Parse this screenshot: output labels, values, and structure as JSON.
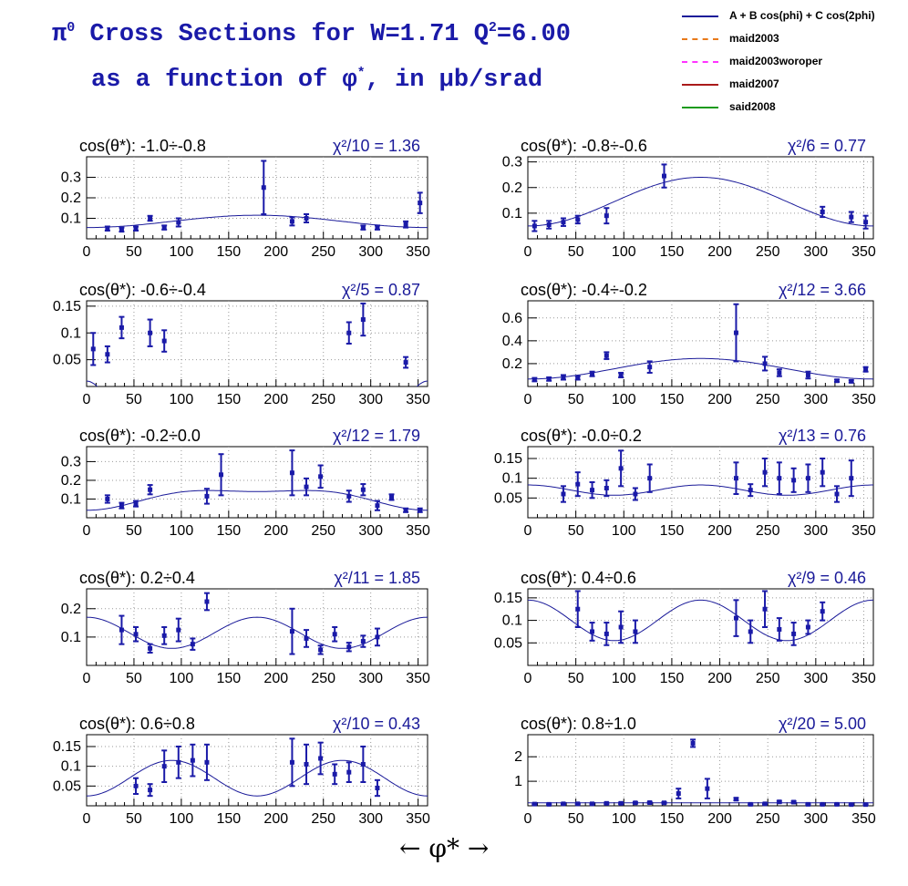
{
  "title": {
    "line1_prefix": "π",
    "line1_sup": "0",
    "line1_text": " Cross Sections for W=1.71  Q",
    "line1_sup2": "2",
    "line1_tail": "=6.00",
    "line2_prefix": "as a function of φ",
    "line2_sup": "*",
    "line2_tail": ", in μb/srad"
  },
  "legend": [
    {
      "label": "A + B cos(phi) + C cos(2phi)",
      "color": "#1a1a99",
      "style": "solid"
    },
    {
      "label": "maid2003",
      "color": "#e87a1a",
      "style": "dashdot"
    },
    {
      "label": "maid2003woroper",
      "color": "#ff33ff",
      "style": "dashed"
    },
    {
      "label": "maid2007",
      "color": "#aa1a1a",
      "style": "solid"
    },
    {
      "label": "said2008",
      "color": "#1a9a1a",
      "style": "solid"
    }
  ],
  "x_axis_label": "←     φ*     →",
  "colors": {
    "data": "#1a1aa8",
    "fit": "#1a1a99",
    "chi": "#1a1a99"
  },
  "chart_data": [
    {
      "type": "scatter",
      "range_label": "cos(θ*): -1.0÷-0.8",
      "chi_label": "χ²/10 = 1.36",
      "xlim": [
        0,
        360
      ],
      "ylim": [
        0,
        0.4
      ],
      "yticks": [
        0.1,
        0.2,
        0.3
      ],
      "ytick_labels": [
        "0.1",
        "0.2",
        "0.3"
      ],
      "xticks": [
        0,
        50,
        100,
        150,
        200,
        250,
        300,
        350
      ],
      "xtick_labels": [
        "0",
        "50",
        "100",
        "150",
        "200",
        "250",
        "300",
        "350"
      ],
      "fit": {
        "A": 0.085,
        "B": -0.03,
        "C": 0.0
      },
      "points": [
        {
          "x": 22,
          "y": 0.05,
          "err": 0.01
        },
        {
          "x": 37,
          "y": 0.045,
          "err": 0.01
        },
        {
          "x": 52,
          "y": 0.05,
          "err": 0.01
        },
        {
          "x": 67,
          "y": 0.1,
          "err": 0.012
        },
        {
          "x": 82,
          "y": 0.055,
          "err": 0.01
        },
        {
          "x": 97,
          "y": 0.08,
          "err": 0.02
        },
        {
          "x": 187,
          "y": 0.25,
          "err": 0.13
        },
        {
          "x": 217,
          "y": 0.085,
          "err": 0.02
        },
        {
          "x": 232,
          "y": 0.1,
          "err": 0.02
        },
        {
          "x": 292,
          "y": 0.055,
          "err": 0.01
        },
        {
          "x": 307,
          "y": 0.055,
          "err": 0.01
        },
        {
          "x": 337,
          "y": 0.07,
          "err": 0.015
        },
        {
          "x": 352,
          "y": 0.175,
          "err": 0.05
        }
      ]
    },
    {
      "type": "scatter",
      "range_label": "cos(θ*): -0.8÷-0.6",
      "chi_label": "χ²/6 = 0.77",
      "xlim": [
        0,
        360
      ],
      "ylim": [
        0,
        0.32
      ],
      "yticks": [
        0.1,
        0.2,
        0.3
      ],
      "ytick_labels": [
        "0.1",
        "0.2",
        "0.3"
      ],
      "xticks": [
        0,
        50,
        100,
        150,
        200,
        250,
        300,
        350
      ],
      "xtick_labels": [
        "0",
        "50",
        "100",
        "150",
        "200",
        "250",
        "300",
        "350"
      ],
      "fit": {
        "A": 0.145,
        "B": -0.095,
        "C": 0.0
      },
      "points": [
        {
          "x": 7,
          "y": 0.05,
          "err": 0.02
        },
        {
          "x": 22,
          "y": 0.055,
          "err": 0.015
        },
        {
          "x": 37,
          "y": 0.065,
          "err": 0.015
        },
        {
          "x": 52,
          "y": 0.075,
          "err": 0.015
        },
        {
          "x": 82,
          "y": 0.09,
          "err": 0.03
        },
        {
          "x": 142,
          "y": 0.245,
          "err": 0.045
        },
        {
          "x": 307,
          "y": 0.105,
          "err": 0.02
        },
        {
          "x": 337,
          "y": 0.085,
          "err": 0.02
        },
        {
          "x": 352,
          "y": 0.065,
          "err": 0.025
        }
      ]
    },
    {
      "type": "scatter",
      "range_label": "cos(θ*): -0.6÷-0.4",
      "chi_label": "χ²/5 = 0.87",
      "xlim": [
        0,
        360
      ],
      "ylim": [
        0,
        0.16
      ],
      "yticks": [
        0.05,
        0.1,
        0.15
      ],
      "ytick_labels": [
        "0.05",
        "0.1",
        "0.15"
      ],
      "xticks": [
        0,
        50,
        100,
        150,
        200,
        250,
        300,
        350
      ],
      "xtick_labels": [
        "0",
        "50",
        "100",
        "150",
        "200",
        "250",
        "300",
        "350"
      ],
      "fit": {
        "A": -0.14,
        "B": 0.02,
        "C": 0.13
      },
      "points": [
        {
          "x": 7,
          "y": 0.07,
          "err": 0.03
        },
        {
          "x": 22,
          "y": 0.06,
          "err": 0.015
        },
        {
          "x": 37,
          "y": 0.11,
          "err": 0.02
        },
        {
          "x": 67,
          "y": 0.1,
          "err": 0.025
        },
        {
          "x": 82,
          "y": 0.085,
          "err": 0.02
        },
        {
          "x": 277,
          "y": 0.1,
          "err": 0.02
        },
        {
          "x": 292,
          "y": 0.125,
          "err": 0.03
        },
        {
          "x": 337,
          "y": 0.045,
          "err": 0.01
        }
      ]
    },
    {
      "type": "scatter",
      "range_label": "cos(θ*): -0.4÷-0.2",
      "chi_label": "χ²/12 = 3.66",
      "xlim": [
        0,
        360
      ],
      "ylim": [
        0,
        0.75
      ],
      "yticks": [
        0.2,
        0.4,
        0.6
      ],
      "ytick_labels": [
        "0.2",
        "0.4",
        "0.6"
      ],
      "xticks": [
        0,
        50,
        100,
        150,
        200,
        250,
        300,
        350
      ],
      "xtick_labels": [
        "0",
        "50",
        "100",
        "150",
        "200",
        "250",
        "300",
        "350"
      ],
      "fit": {
        "A": 0.155,
        "B": -0.09,
        "C": 0.0
      },
      "points": [
        {
          "x": 7,
          "y": 0.06,
          "err": 0.015
        },
        {
          "x": 22,
          "y": 0.065,
          "err": 0.015
        },
        {
          "x": 37,
          "y": 0.08,
          "err": 0.02
        },
        {
          "x": 52,
          "y": 0.075,
          "err": 0.015
        },
        {
          "x": 67,
          "y": 0.11,
          "err": 0.02
        },
        {
          "x": 82,
          "y": 0.27,
          "err": 0.03
        },
        {
          "x": 97,
          "y": 0.1,
          "err": 0.02
        },
        {
          "x": 127,
          "y": 0.17,
          "err": 0.05
        },
        {
          "x": 217,
          "y": 0.47,
          "err": 0.25
        },
        {
          "x": 247,
          "y": 0.2,
          "err": 0.06
        },
        {
          "x": 262,
          "y": 0.12,
          "err": 0.03
        },
        {
          "x": 292,
          "y": 0.1,
          "err": 0.03
        },
        {
          "x": 322,
          "y": 0.05,
          "err": 0.01
        },
        {
          "x": 337,
          "y": 0.045,
          "err": 0.01
        },
        {
          "x": 352,
          "y": 0.15,
          "err": 0.02
        }
      ]
    },
    {
      "type": "scatter",
      "range_label": "cos(θ*): -0.2÷0.0",
      "chi_label": "χ²/12 = 1.79",
      "xlim": [
        0,
        360
      ],
      "ylim": [
        0,
        0.38
      ],
      "yticks": [
        0.1,
        0.2,
        0.3
      ],
      "ytick_labels": [
        "0.1",
        "0.2",
        "0.3"
      ],
      "xticks": [
        0,
        50,
        100,
        150,
        200,
        250,
        300,
        350
      ],
      "xtick_labels": [
        "0",
        "50",
        "100",
        "150",
        "200",
        "250",
        "300",
        "350"
      ],
      "fit": {
        "A": 0.11,
        "B": -0.05,
        "C": -0.02
      },
      "points": [
        {
          "x": 22,
          "y": 0.1,
          "err": 0.02
        },
        {
          "x": 37,
          "y": 0.065,
          "err": 0.015
        },
        {
          "x": 52,
          "y": 0.075,
          "err": 0.015
        },
        {
          "x": 67,
          "y": 0.15,
          "err": 0.025
        },
        {
          "x": 127,
          "y": 0.115,
          "err": 0.04
        },
        {
          "x": 142,
          "y": 0.23,
          "err": 0.11
        },
        {
          "x": 217,
          "y": 0.24,
          "err": 0.12
        },
        {
          "x": 232,
          "y": 0.165,
          "err": 0.045
        },
        {
          "x": 247,
          "y": 0.22,
          "err": 0.06
        },
        {
          "x": 277,
          "y": 0.115,
          "err": 0.03
        },
        {
          "x": 292,
          "y": 0.15,
          "err": 0.03
        },
        {
          "x": 307,
          "y": 0.065,
          "err": 0.025
        },
        {
          "x": 322,
          "y": 0.11,
          "err": 0.015
        },
        {
          "x": 337,
          "y": 0.04,
          "err": 0.01
        },
        {
          "x": 352,
          "y": 0.04,
          "err": 0.01
        }
      ]
    },
    {
      "type": "scatter",
      "range_label": "cos(θ*): -0.0÷0.2",
      "chi_label": "χ²/13 = 0.76",
      "xlim": [
        0,
        360
      ],
      "ylim": [
        0,
        0.18
      ],
      "yticks": [
        0.05,
        0.1,
        0.15
      ],
      "ytick_labels": [
        "0.05",
        "0.1",
        "0.15"
      ],
      "xticks": [
        0,
        50,
        100,
        150,
        200,
        250,
        300,
        350
      ],
      "xtick_labels": [
        "0",
        "50",
        "100",
        "150",
        "200",
        "250",
        "300",
        "350"
      ],
      "fit": {
        "A": 0.07,
        "B": 0.0,
        "C": 0.013
      },
      "points": [
        {
          "x": 37,
          "y": 0.06,
          "err": 0.02
        },
        {
          "x": 52,
          "y": 0.085,
          "err": 0.03
        },
        {
          "x": 67,
          "y": 0.07,
          "err": 0.02
        },
        {
          "x": 82,
          "y": 0.075,
          "err": 0.02
        },
        {
          "x": 97,
          "y": 0.125,
          "err": 0.045
        },
        {
          "x": 112,
          "y": 0.06,
          "err": 0.015
        },
        {
          "x": 127,
          "y": 0.1,
          "err": 0.035
        },
        {
          "x": 217,
          "y": 0.1,
          "err": 0.04
        },
        {
          "x": 232,
          "y": 0.07,
          "err": 0.015
        },
        {
          "x": 247,
          "y": 0.115,
          "err": 0.035
        },
        {
          "x": 262,
          "y": 0.1,
          "err": 0.04
        },
        {
          "x": 277,
          "y": 0.095,
          "err": 0.03
        },
        {
          "x": 292,
          "y": 0.1,
          "err": 0.035
        },
        {
          "x": 307,
          "y": 0.115,
          "err": 0.035
        },
        {
          "x": 322,
          "y": 0.06,
          "err": 0.02
        },
        {
          "x": 337,
          "y": 0.1,
          "err": 0.045
        }
      ]
    },
    {
      "type": "scatter",
      "range_label": "cos(θ*): 0.2÷0.4",
      "chi_label": "χ²/11 = 1.85",
      "xlim": [
        0,
        360
      ],
      "ylim": [
        0,
        0.27
      ],
      "yticks": [
        0.1,
        0.2
      ],
      "ytick_labels": [
        "0.1",
        "0.2"
      ],
      "xticks": [
        0,
        50,
        100,
        150,
        200,
        250,
        300,
        350
      ],
      "xtick_labels": [
        "0",
        "50",
        "100",
        "150",
        "200",
        "250",
        "300",
        "350"
      ],
      "fit": {
        "A": 0.115,
        "B": 0.0,
        "C": 0.055
      },
      "points": [
        {
          "x": 37,
          "y": 0.125,
          "err": 0.05
        },
        {
          "x": 52,
          "y": 0.11,
          "err": 0.025
        },
        {
          "x": 67,
          "y": 0.06,
          "err": 0.015
        },
        {
          "x": 82,
          "y": 0.105,
          "err": 0.03
        },
        {
          "x": 97,
          "y": 0.125,
          "err": 0.04
        },
        {
          "x": 112,
          "y": 0.075,
          "err": 0.02
        },
        {
          "x": 127,
          "y": 0.225,
          "err": 0.03
        },
        {
          "x": 217,
          "y": 0.12,
          "err": 0.08
        },
        {
          "x": 232,
          "y": 0.095,
          "err": 0.03
        },
        {
          "x": 247,
          "y": 0.055,
          "err": 0.015
        },
        {
          "x": 262,
          "y": 0.11,
          "err": 0.025
        },
        {
          "x": 277,
          "y": 0.065,
          "err": 0.015
        },
        {
          "x": 292,
          "y": 0.085,
          "err": 0.02
        },
        {
          "x": 307,
          "y": 0.1,
          "err": 0.03
        }
      ]
    },
    {
      "type": "scatter",
      "range_label": "cos(θ*): 0.4÷0.6",
      "chi_label": "χ²/9 = 0.46",
      "xlim": [
        0,
        360
      ],
      "ylim": [
        0,
        0.17
      ],
      "yticks": [
        0.05,
        0.1,
        0.15
      ],
      "ytick_labels": [
        "0.05",
        "0.1",
        "0.15"
      ],
      "xticks": [
        0,
        50,
        100,
        150,
        200,
        250,
        300,
        350
      ],
      "xtick_labels": [
        "0",
        "50",
        "100",
        "150",
        "200",
        "250",
        "300",
        "350"
      ],
      "fit": {
        "A": 0.1,
        "B": 0.0,
        "C": 0.045
      },
      "points": [
        {
          "x": 52,
          "y": 0.125,
          "err": 0.04
        },
        {
          "x": 67,
          "y": 0.075,
          "err": 0.02
        },
        {
          "x": 82,
          "y": 0.07,
          "err": 0.025
        },
        {
          "x": 97,
          "y": 0.085,
          "err": 0.035
        },
        {
          "x": 112,
          "y": 0.075,
          "err": 0.025
        },
        {
          "x": 217,
          "y": 0.105,
          "err": 0.04
        },
        {
          "x": 232,
          "y": 0.075,
          "err": 0.025
        },
        {
          "x": 247,
          "y": 0.125,
          "err": 0.04
        },
        {
          "x": 262,
          "y": 0.08,
          "err": 0.025
        },
        {
          "x": 277,
          "y": 0.07,
          "err": 0.025
        },
        {
          "x": 292,
          "y": 0.085,
          "err": 0.015
        },
        {
          "x": 307,
          "y": 0.12,
          "err": 0.02
        }
      ]
    },
    {
      "type": "scatter",
      "range_label": "cos(θ*): 0.6÷0.8",
      "chi_label": "χ²/10 = 0.43",
      "xlim": [
        0,
        360
      ],
      "ylim": [
        0,
        0.18
      ],
      "yticks": [
        0.05,
        0.1,
        0.15
      ],
      "ytick_labels": [
        "0.05",
        "0.1",
        "0.15"
      ],
      "xticks": [
        0,
        50,
        100,
        150,
        200,
        250,
        300,
        350
      ],
      "xtick_labels": [
        "0",
        "50",
        "100",
        "150",
        "200",
        "250",
        "300",
        "350"
      ],
      "fit": {
        "A": 0.07,
        "B": 0.0,
        "C": -0.045
      },
      "points": [
        {
          "x": 52,
          "y": 0.05,
          "err": 0.02
        },
        {
          "x": 67,
          "y": 0.04,
          "err": 0.015
        },
        {
          "x": 82,
          "y": 0.1,
          "err": 0.04
        },
        {
          "x": 97,
          "y": 0.11,
          "err": 0.04
        },
        {
          "x": 112,
          "y": 0.115,
          "err": 0.04
        },
        {
          "x": 127,
          "y": 0.11,
          "err": 0.045
        },
        {
          "x": 217,
          "y": 0.11,
          "err": 0.06
        },
        {
          "x": 232,
          "y": 0.105,
          "err": 0.05
        },
        {
          "x": 247,
          "y": 0.12,
          "err": 0.04
        },
        {
          "x": 262,
          "y": 0.08,
          "err": 0.025
        },
        {
          "x": 277,
          "y": 0.085,
          "err": 0.025
        },
        {
          "x": 292,
          "y": 0.105,
          "err": 0.045
        },
        {
          "x": 307,
          "y": 0.045,
          "err": 0.02
        }
      ]
    },
    {
      "type": "scatter",
      "range_label": "cos(θ*): 0.8÷1.0",
      "chi_label": "χ²/20 = 5.00",
      "xlim": [
        0,
        360
      ],
      "ylim": [
        0,
        2.9
      ],
      "yticks": [
        1,
        2
      ],
      "ytick_labels": [
        "1",
        "2"
      ],
      "xticks": [
        0,
        50,
        100,
        150,
        200,
        250,
        300,
        350
      ],
      "xtick_labels": [
        "0",
        "50",
        "100",
        "150",
        "200",
        "250",
        "300",
        "350"
      ],
      "fit": {
        "A": 0.12,
        "B": 0.0,
        "C": 0.0
      },
      "points": [
        {
          "x": 7,
          "y": 0.07,
          "err": 0.02
        },
        {
          "x": 22,
          "y": 0.06,
          "err": 0.02
        },
        {
          "x": 37,
          "y": 0.08,
          "err": 0.02
        },
        {
          "x": 52,
          "y": 0.08,
          "err": 0.02
        },
        {
          "x": 67,
          "y": 0.08,
          "err": 0.02
        },
        {
          "x": 82,
          "y": 0.1,
          "err": 0.03
        },
        {
          "x": 97,
          "y": 0.1,
          "err": 0.03
        },
        {
          "x": 112,
          "y": 0.12,
          "err": 0.03
        },
        {
          "x": 127,
          "y": 0.13,
          "err": 0.03
        },
        {
          "x": 142,
          "y": 0.12,
          "err": 0.03
        },
        {
          "x": 157,
          "y": 0.5,
          "err": 0.2
        },
        {
          "x": 172,
          "y": 2.55,
          "err": 0.15
        },
        {
          "x": 187,
          "y": 0.7,
          "err": 0.4
        },
        {
          "x": 217,
          "y": 0.27,
          "err": 0.05
        },
        {
          "x": 232,
          "y": 0.06,
          "err": 0.02
        },
        {
          "x": 247,
          "y": 0.08,
          "err": 0.02
        },
        {
          "x": 262,
          "y": 0.16,
          "err": 0.04
        },
        {
          "x": 277,
          "y": 0.15,
          "err": 0.04
        },
        {
          "x": 292,
          "y": 0.06,
          "err": 0.02
        },
        {
          "x": 307,
          "y": 0.06,
          "err": 0.02
        },
        {
          "x": 322,
          "y": 0.06,
          "err": 0.02
        },
        {
          "x": 337,
          "y": 0.05,
          "err": 0.02
        },
        {
          "x": 352,
          "y": 0.05,
          "err": 0.02
        }
      ]
    }
  ]
}
